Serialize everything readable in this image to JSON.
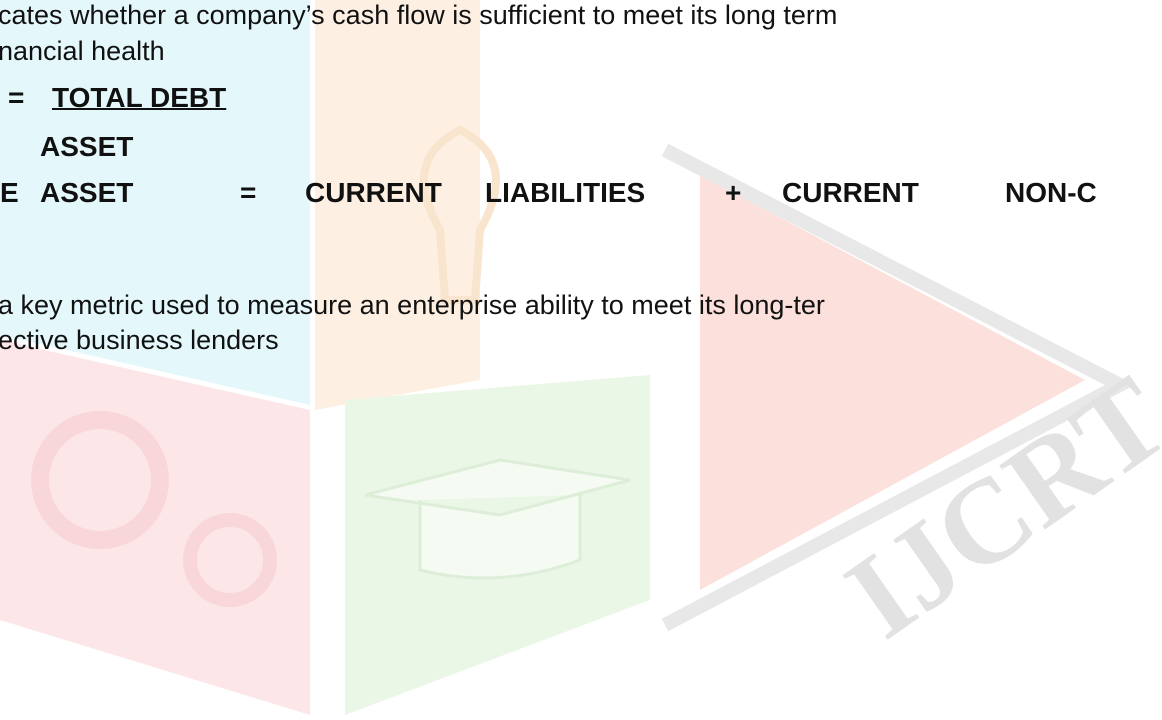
{
  "document": {
    "lines": [
      "cates whether a company’s cash flow is sufficient to meet its long term",
      "nancial health"
    ],
    "formula": {
      "prefix": "=",
      "numerator": "TOTAL DEBT",
      "denominator": "ASSET"
    },
    "definition_words": [
      "E",
      "ASSET",
      "=",
      "CURRENT",
      "LIABILITIES",
      "+",
      "CURRENT",
      "NON-C"
    ],
    "paragraph": [
      "a key metric used to measure an enterprise ability to meet its long-ter",
      "ective business lenders"
    ],
    "watermark": "IJCRT"
  }
}
